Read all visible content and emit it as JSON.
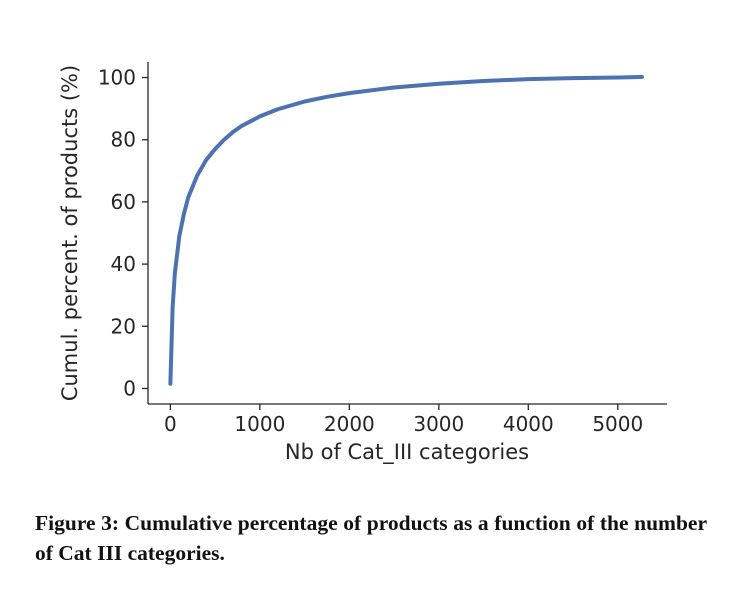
{
  "chart_data": {
    "type": "line",
    "xlabel": "Nb of Cat_III categories",
    "ylabel": "Cumul. percent. of products (%)",
    "xlim": [
      -250,
      5550
    ],
    "ylim": [
      -5,
      105
    ],
    "xticks": [
      0,
      1000,
      2000,
      3000,
      4000,
      5000
    ],
    "yticks": [
      0,
      20,
      40,
      60,
      80,
      100
    ],
    "grid": false,
    "legend": "none",
    "line_color": "#4c72b0",
    "series": [
      {
        "x": [
          0,
          25,
          50,
          100,
          150,
          200,
          300,
          400,
          500,
          600,
          700,
          800,
          1000,
          1200,
          1500,
          1750,
          2000,
          2500,
          3000,
          3500,
          4000,
          4500,
          5000,
          5270
        ],
        "y": [
          1.5,
          26,
          37,
          49,
          56,
          61.5,
          68.5,
          73.5,
          77,
          80,
          82.5,
          84.5,
          87.5,
          89.8,
          92.3,
          93.8,
          95,
          96.8,
          98,
          98.9,
          99.5,
          99.8,
          100,
          100.2
        ]
      }
    ]
  },
  "caption": "Figure 3: Cumulative percentage of products as a function of the number of Cat III categories."
}
